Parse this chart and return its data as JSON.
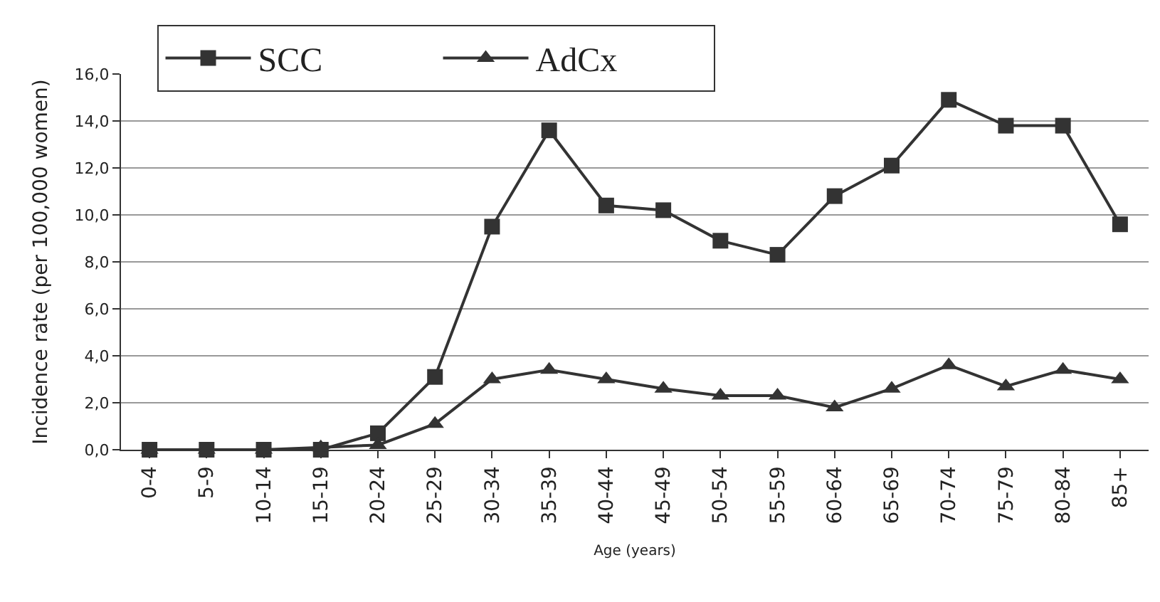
{
  "chart_data": {
    "type": "line",
    "xlabel": "Age (years)",
    "ylabel": "Incidence rate (per 100,000 women)",
    "categories": [
      "0-4",
      "5-9",
      "10-14",
      "15-19",
      "20-24",
      "25-29",
      "30-34",
      "35-39",
      "40-44",
      "45-49",
      "50-54",
      "55-59",
      "60-64",
      "65-69",
      "70-74",
      "75-79",
      "80-84",
      "85+"
    ],
    "series": [
      {
        "name": "SCC",
        "color": "#333333",
        "marker": "square",
        "values": [
          0,
          0,
          0,
          0,
          0.7,
          3.1,
          9.5,
          13.6,
          10.4,
          10.2,
          8.9,
          8.3,
          10.8,
          12.1,
          14.9,
          13.8,
          13.8,
          9.6
        ]
      },
      {
        "name": "AdCx",
        "color": "#333333",
        "marker": "triangle",
        "values": [
          0,
          0,
          0,
          0.1,
          0.2,
          1.1,
          3.0,
          3.4,
          3.0,
          2.6,
          2.3,
          2.3,
          1.8,
          2.6,
          3.6,
          2.7,
          3.4,
          3.0
        ]
      }
    ],
    "ylim": [
      0,
      16
    ],
    "yticks": [
      {
        "value": 0,
        "label": "0,0"
      },
      {
        "value": 2,
        "label": "2,0"
      },
      {
        "value": 4,
        "label": "4,0"
      },
      {
        "value": 6,
        "label": "6,0"
      },
      {
        "value": 8,
        "label": "8,0"
      },
      {
        "value": 10,
        "label": "10,0"
      },
      {
        "value": 12,
        "label": "12,0"
      },
      {
        "value": 14,
        "label": "14,0"
      },
      {
        "value": 16,
        "label": "16,0"
      }
    ],
    "grid": "y",
    "legend": "top left",
    "line_style": "solid"
  }
}
